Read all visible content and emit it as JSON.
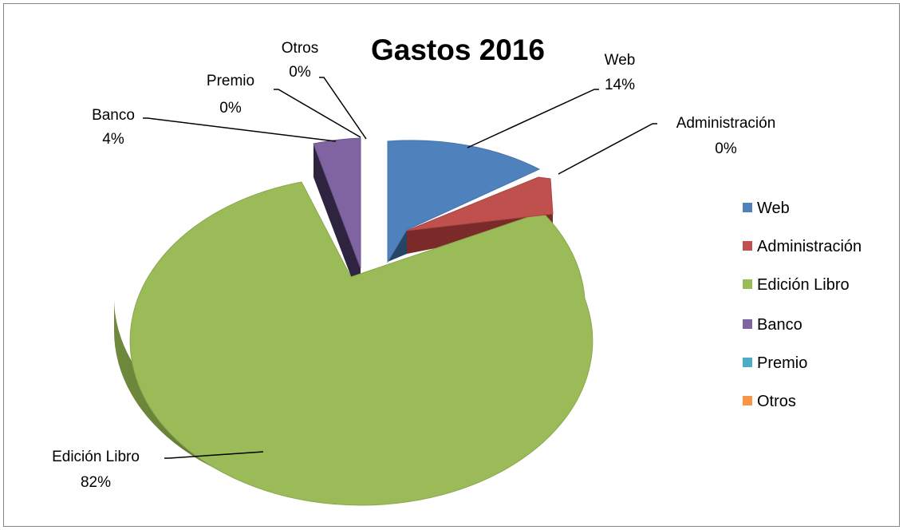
{
  "chart_data": {
    "type": "pie",
    "style": "3d-exploded",
    "title": "Gastos 2016",
    "slices": [
      {
        "name": "Web",
        "percent_label": "14%",
        "value": 14,
        "color": "#4F81BD"
      },
      {
        "name": "Administración",
        "percent_label": "0%",
        "value": 0.4,
        "color": "#C0504D"
      },
      {
        "name": "Edición Libro",
        "percent_label": "82%",
        "value": 82,
        "color": "#9BBB59"
      },
      {
        "name": "Banco",
        "percent_label": "4%",
        "value": 3.6,
        "color": "#8064A2"
      },
      {
        "name": "Premio",
        "percent_label": "0%",
        "value": 0,
        "color": "#4BACC6"
      },
      {
        "name": "Otros",
        "percent_label": "0%",
        "value": 0,
        "color": "#F79646"
      }
    ],
    "legend": {
      "position": "right",
      "entries": [
        "Web",
        "Administración",
        "Edición Libro",
        "Banco",
        "Premio",
        "Otros"
      ]
    }
  }
}
